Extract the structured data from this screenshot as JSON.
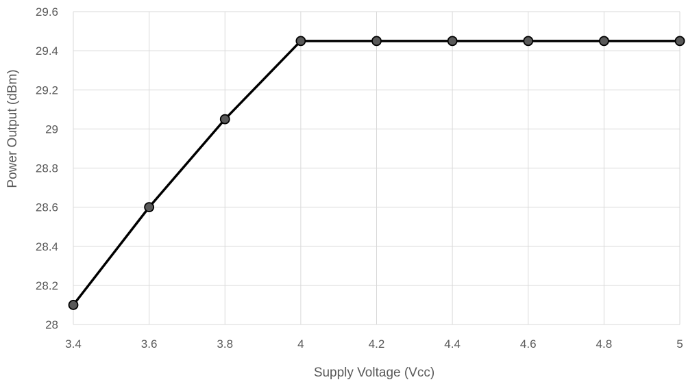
{
  "chart_data": {
    "type": "line",
    "title": "",
    "xlabel": "Supply Voltage (Vcc)",
    "ylabel": "Power Output (dBm)",
    "xlim": [
      3.4,
      5.0
    ],
    "ylim": [
      28.0,
      29.6
    ],
    "x_ticks": [
      3.4,
      3.6,
      3.8,
      4.0,
      4.2,
      4.4,
      4.6,
      4.8,
      5.0
    ],
    "x_tick_labels": [
      "3.4",
      "3.6",
      "3.8",
      "4",
      "4.2",
      "4.4",
      "4.6",
      "4.8",
      "5"
    ],
    "y_ticks": [
      28.0,
      28.2,
      28.4,
      28.6,
      28.8,
      29.0,
      29.2,
      29.4,
      29.6
    ],
    "y_tick_labels": [
      "28",
      "28.2",
      "28.4",
      "28.6",
      "28.8",
      "29",
      "29.2",
      "29.4",
      "29.6"
    ],
    "grid": true,
    "legend": "none",
    "series": [
      {
        "x": [
          3.4,
          3.6,
          3.8,
          4.0,
          4.2,
          4.4,
          4.6,
          4.8,
          5.0
        ],
        "values": [
          28.1,
          28.6,
          29.05,
          29.45,
          29.45,
          29.45,
          29.45,
          29.45,
          29.45
        ],
        "line_color": "#000000",
        "marker_fill": "#595959",
        "marker_edge": "#000000"
      }
    ],
    "colors": {
      "grid": "#d9d9d9",
      "text": "#595959"
    }
  }
}
